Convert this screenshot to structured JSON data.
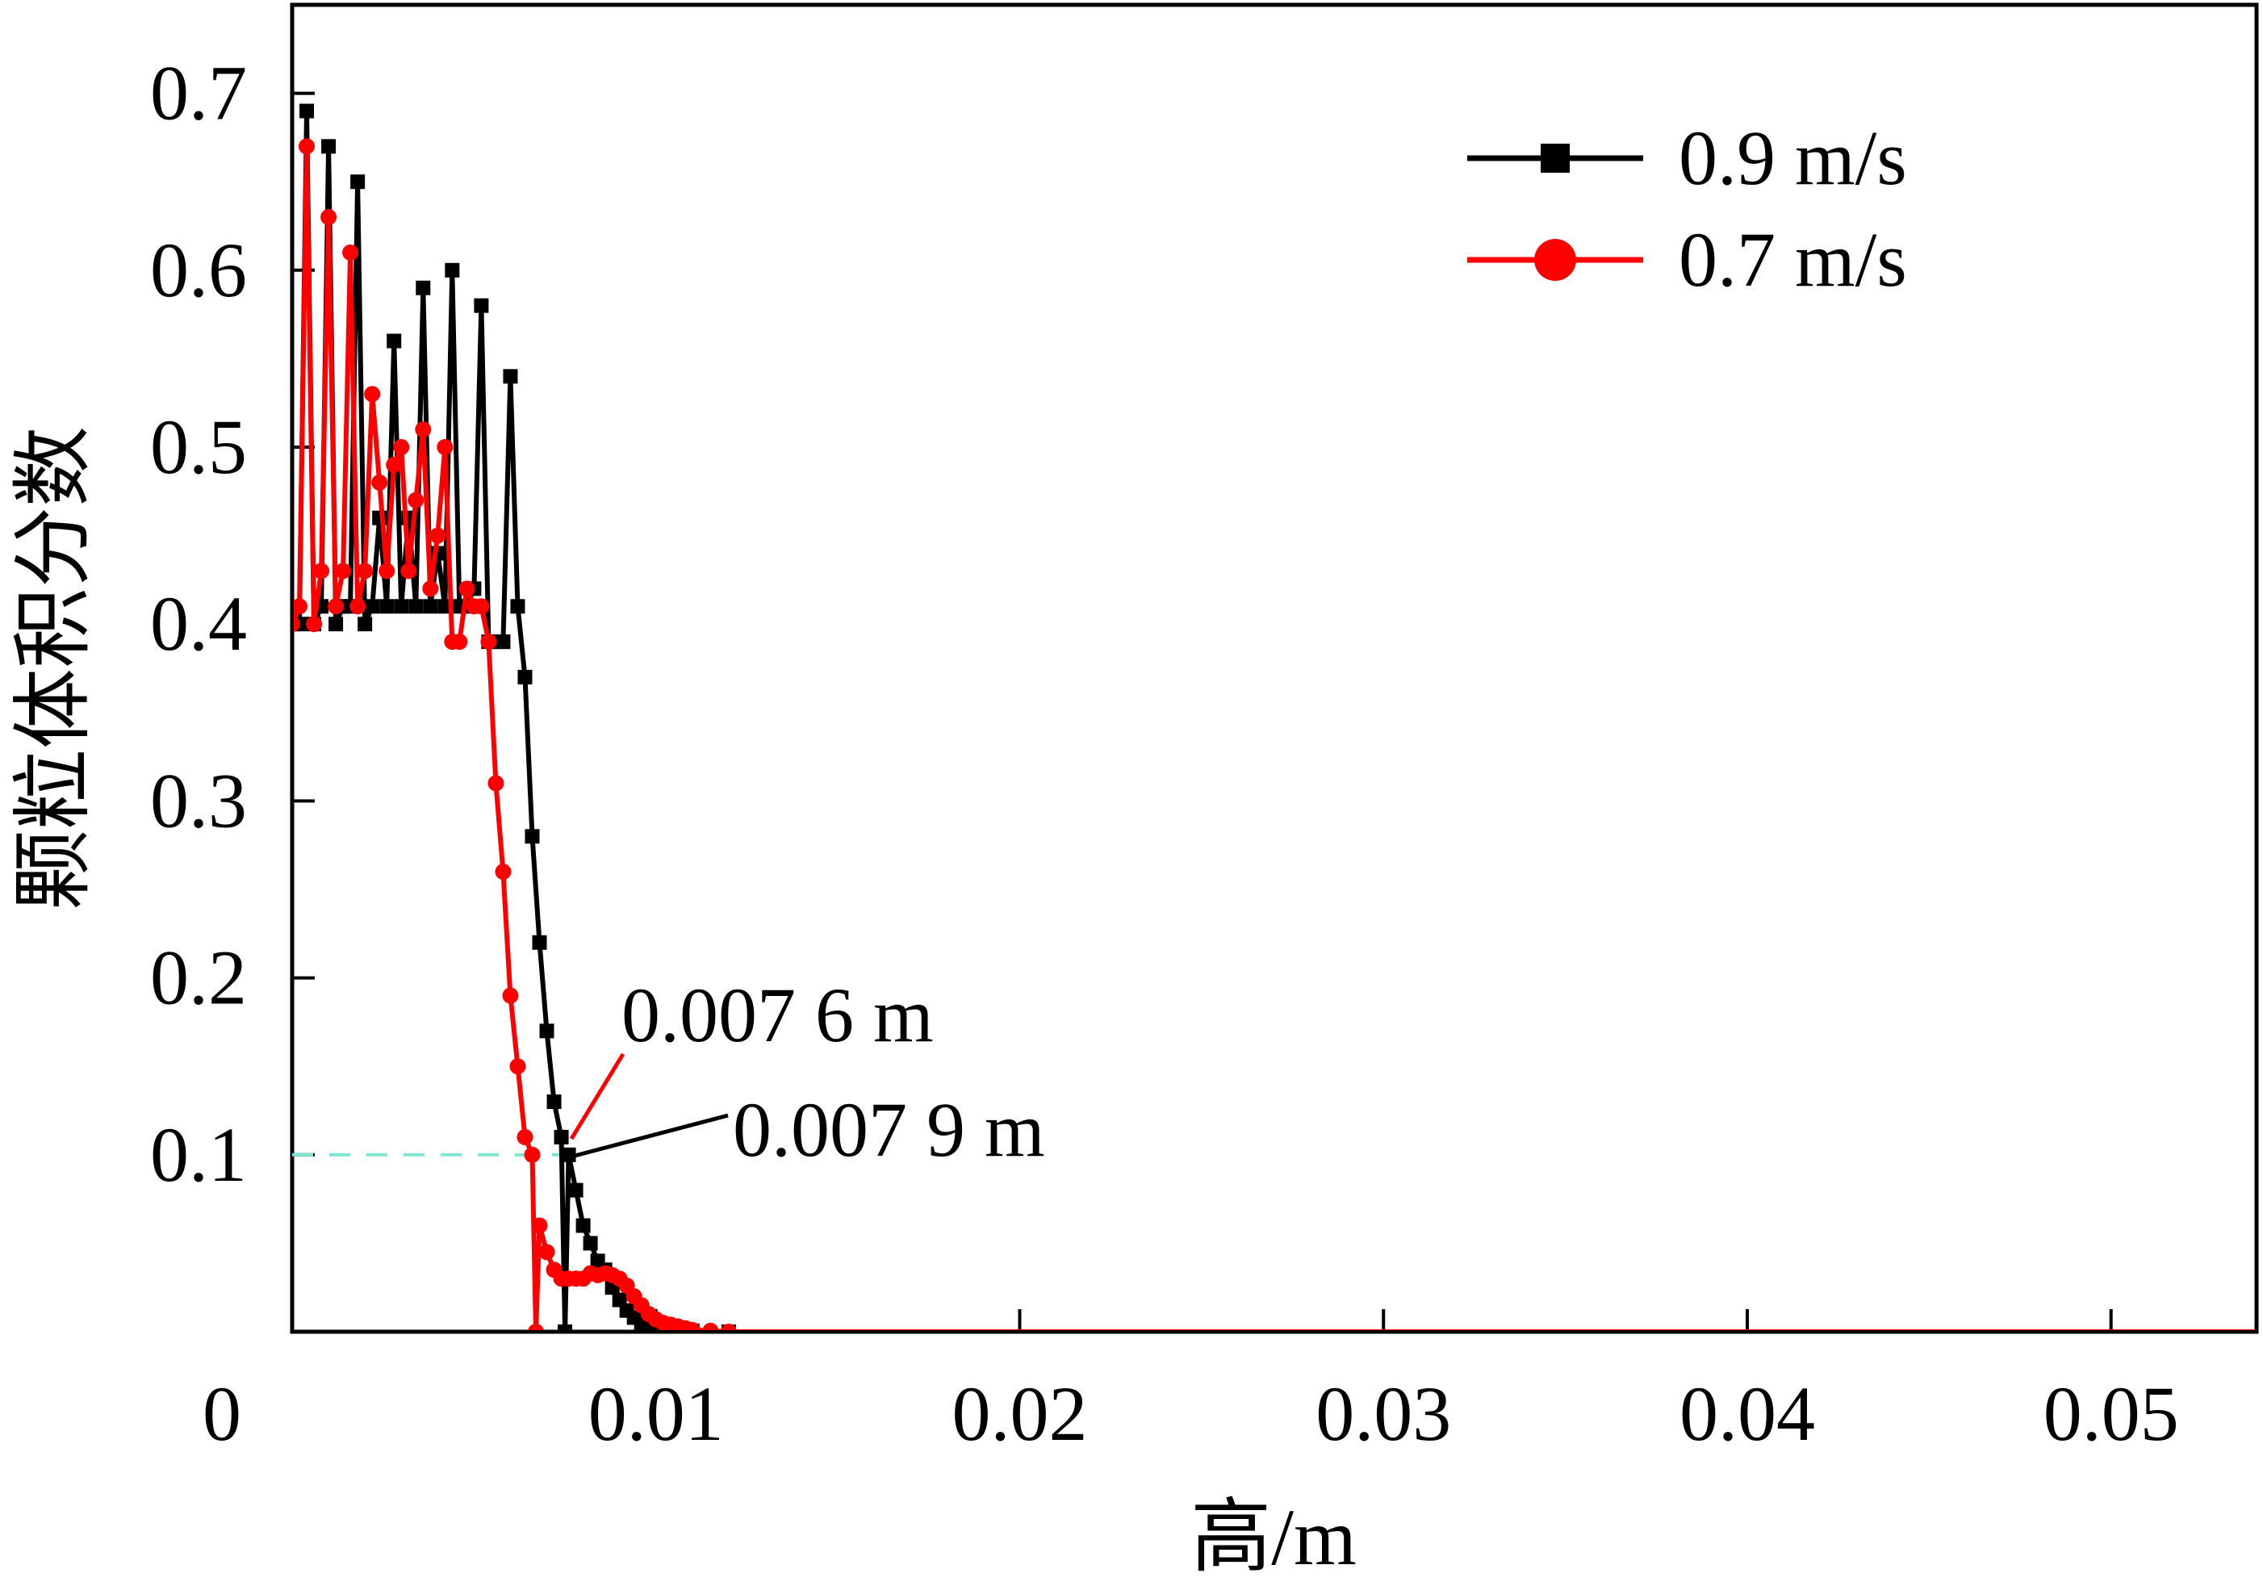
{
  "chart_data": {
    "type": "line",
    "title": "",
    "xlabel": "高/m",
    "ylabel": "颗粒体积分数",
    "xlim": [
      0,
      0.054
    ],
    "ylim": [
      0,
      0.75
    ],
    "xticks": [
      0,
      0.01,
      0.02,
      0.03,
      0.04,
      0.05
    ],
    "xtick_labels": [
      "0",
      "0.01",
      "0.02",
      "0.03",
      "0.04",
      "0.05"
    ],
    "yticks": [
      0.1,
      0.2,
      0.3,
      0.4,
      0.5,
      0.6,
      0.7
    ],
    "ytick_labels": [
      "0.1",
      "0.2",
      "0.3",
      "0.4",
      "0.5",
      "0.6",
      "0.7"
    ],
    "grid": false,
    "legend": "top-right",
    "series": [
      {
        "name": "0.9 m/s",
        "color": "#000000",
        "marker": "square",
        "points": [
          [
            0,
            0.4
          ],
          [
            0.0002,
            0.4
          ],
          [
            0.0004,
            0.69
          ],
          [
            0.0006,
            0.4
          ],
          [
            0.0008,
            0.41
          ],
          [
            0.001,
            0.67
          ],
          [
            0.0012,
            0.4
          ],
          [
            0.0014,
            0.41
          ],
          [
            0.0016,
            0.41
          ],
          [
            0.0018,
            0.65
          ],
          [
            0.002,
            0.4
          ],
          [
            0.0022,
            0.41
          ],
          [
            0.0024,
            0.46
          ],
          [
            0.0026,
            0.41
          ],
          [
            0.0028,
            0.56
          ],
          [
            0.003,
            0.41
          ],
          [
            0.0032,
            0.46
          ],
          [
            0.0034,
            0.41
          ],
          [
            0.0036,
            0.59
          ],
          [
            0.0038,
            0.41
          ],
          [
            0.004,
            0.44
          ],
          [
            0.0042,
            0.41
          ],
          [
            0.0044,
            0.6
          ],
          [
            0.0046,
            0.41
          ],
          [
            0.0048,
            0.41
          ],
          [
            0.005,
            0.42
          ],
          [
            0.0052,
            0.58
          ],
          [
            0.0054,
            0.39
          ],
          [
            0.0056,
            0.39
          ],
          [
            0.0058,
            0.39
          ],
          [
            0.006,
            0.54
          ],
          [
            0.0062,
            0.41
          ],
          [
            0.0064,
            0.37
          ],
          [
            0.0066,
            0.28
          ],
          [
            0.0068,
            0.22
          ],
          [
            0.007,
            0.17
          ],
          [
            0.0072,
            0.13
          ],
          [
            0.0074,
            0.11
          ],
          [
            0.0075,
            0.0
          ],
          [
            0.0076,
            0.1
          ],
          [
            0.0078,
            0.08
          ],
          [
            0.008,
            0.06
          ],
          [
            0.0082,
            0.05
          ],
          [
            0.0084,
            0.04
          ],
          [
            0.0086,
            0.035
          ],
          [
            0.0088,
            0.025
          ],
          [
            0.009,
            0.018
          ],
          [
            0.0092,
            0.012
          ],
          [
            0.0094,
            0.008
          ],
          [
            0.0096,
            0.005
          ],
          [
            0.0098,
            0.003
          ],
          [
            0.01,
            0.002
          ],
          [
            0.0105,
            0.001
          ],
          [
            0.011,
            0.0005
          ],
          [
            0.012,
            0.0
          ],
          [
            0.02,
            0.0
          ],
          [
            0.03,
            0.0
          ],
          [
            0.04,
            0.0
          ],
          [
            0.05,
            0.0
          ],
          [
            0.054,
            0.0
          ]
        ]
      },
      {
        "name": "0.7 m/s",
        "color": "#ff0000",
        "marker": "circle",
        "points": [
          [
            0,
            0.4
          ],
          [
            0.0002,
            0.41
          ],
          [
            0.0004,
            0.67
          ],
          [
            0.0006,
            0.4
          ],
          [
            0.0008,
            0.43
          ],
          [
            0.001,
            0.63
          ],
          [
            0.0012,
            0.41
          ],
          [
            0.0014,
            0.43
          ],
          [
            0.0016,
            0.61
          ],
          [
            0.0018,
            0.41
          ],
          [
            0.002,
            0.43
          ],
          [
            0.0022,
            0.53
          ],
          [
            0.0024,
            0.48
          ],
          [
            0.0026,
            0.43
          ],
          [
            0.0028,
            0.49
          ],
          [
            0.003,
            0.5
          ],
          [
            0.0032,
            0.43
          ],
          [
            0.0034,
            0.47
          ],
          [
            0.0036,
            0.51
          ],
          [
            0.0038,
            0.42
          ],
          [
            0.004,
            0.45
          ],
          [
            0.0042,
            0.5
          ],
          [
            0.0044,
            0.39
          ],
          [
            0.0046,
            0.39
          ],
          [
            0.0048,
            0.42
          ],
          [
            0.005,
            0.41
          ],
          [
            0.0052,
            0.41
          ],
          [
            0.0054,
            0.39
          ],
          [
            0.0056,
            0.31
          ],
          [
            0.0058,
            0.26
          ],
          [
            0.006,
            0.19
          ],
          [
            0.0062,
            0.15
          ],
          [
            0.0064,
            0.11
          ],
          [
            0.0066,
            0.1
          ],
          [
            0.0067,
            0.0
          ],
          [
            0.0068,
            0.06
          ],
          [
            0.007,
            0.045
          ],
          [
            0.0072,
            0.035
          ],
          [
            0.0074,
            0.03
          ],
          [
            0.0076,
            0.03
          ],
          [
            0.0078,
            0.03
          ],
          [
            0.008,
            0.03
          ],
          [
            0.0082,
            0.033
          ],
          [
            0.0084,
            0.032
          ],
          [
            0.0086,
            0.033
          ],
          [
            0.0088,
            0.032
          ],
          [
            0.009,
            0.03
          ],
          [
            0.0092,
            0.026
          ],
          [
            0.0094,
            0.02
          ],
          [
            0.0096,
            0.015
          ],
          [
            0.0098,
            0.01
          ],
          [
            0.01,
            0.007
          ],
          [
            0.0102,
            0.005
          ],
          [
            0.0104,
            0.004
          ],
          [
            0.0106,
            0.003
          ],
          [
            0.0108,
            0.002
          ],
          [
            0.011,
            0.001
          ],
          [
            0.0115,
            0.0005
          ],
          [
            0.012,
            0.0
          ],
          [
            0.02,
            0.0
          ],
          [
            0.03,
            0.0
          ],
          [
            0.04,
            0.0
          ],
          [
            0.05,
            0.0
          ],
          [
            0.054,
            0.0
          ]
        ]
      }
    ],
    "reference_line": {
      "y": 0.1,
      "color": "#7fe5d5",
      "style": "dashed"
    },
    "annotations": [
      {
        "text": "0.007 6 m",
        "x": 0.0076,
        "y": 0.1,
        "color": "#ff0000"
      },
      {
        "text": "0.007 9 m",
        "x": 0.0079,
        "y": 0.1,
        "color": "#000000"
      }
    ]
  }
}
